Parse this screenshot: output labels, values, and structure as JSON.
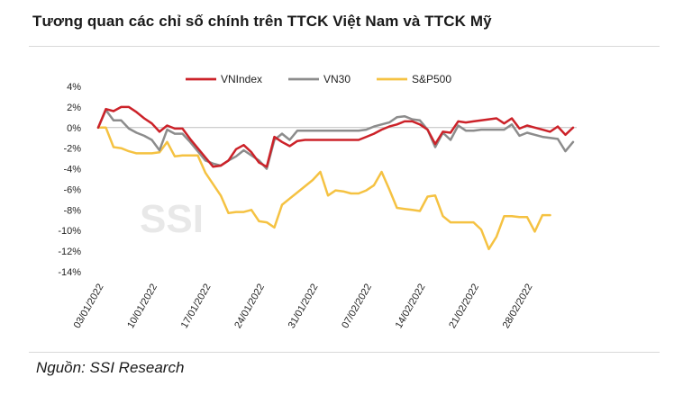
{
  "title": "Tương quan các chỉ số chính trên TTCK Việt Nam và TTCK Mỹ",
  "source": "Nguồn: SSI Research",
  "watermark": "SSI",
  "chart_data": {
    "type": "line",
    "y_unit": "%",
    "ylim": [
      -14,
      4
    ],
    "yticks": [
      4,
      2,
      0,
      -2,
      -4,
      -6,
      -8,
      -10,
      -12,
      -14
    ],
    "ytick_labels": [
      "4%",
      "2%",
      "0%",
      "-2%",
      "-4%",
      "-6%",
      "-8%",
      "-10%",
      "-12%",
      "-14%"
    ],
    "x_start": "03/01/2022",
    "x_ticks": [
      "03/01/2022",
      "10/01/2022",
      "17/01/2022",
      "24/01/2022",
      "31/01/2022",
      "07/02/2022",
      "14/02/2022",
      "21/02/2022",
      "28/02/2022"
    ],
    "x_tick_positions": [
      0,
      7,
      14,
      21,
      28,
      35,
      42,
      49,
      56
    ],
    "legend_position": "top-center",
    "grid": false,
    "series": [
      {
        "name": "VNIndex",
        "color": "#cc2229",
        "points": [
          [
            0,
            0
          ],
          [
            1,
            1.8
          ],
          [
            2,
            1.6
          ],
          [
            3,
            2.0
          ],
          [
            4,
            2.0
          ],
          [
            5,
            1.5
          ],
          [
            6,
            0.9
          ],
          [
            7,
            0.4
          ],
          [
            8,
            -0.4
          ],
          [
            9,
            0.2
          ],
          [
            10,
            -0.1
          ],
          [
            11,
            -0.1
          ],
          [
            12,
            -1.1
          ],
          [
            14,
            -2.9
          ],
          [
            15,
            -3.8
          ],
          [
            16,
            -3.7
          ],
          [
            17,
            -3.2
          ],
          [
            18,
            -2.1
          ],
          [
            19,
            -1.7
          ],
          [
            20,
            -2.4
          ],
          [
            21,
            -3.4
          ],
          [
            22,
            -3.8
          ],
          [
            23,
            -0.9
          ],
          [
            24,
            -1.4
          ],
          [
            25,
            -1.8
          ],
          [
            26,
            -1.3
          ],
          [
            27,
            -1.2
          ],
          [
            28,
            -1.2
          ],
          [
            29,
            -1.2
          ],
          [
            30,
            -1.2
          ],
          [
            31,
            -1.2
          ],
          [
            32,
            -1.2
          ],
          [
            33,
            -1.2
          ],
          [
            34,
            -1.2
          ],
          [
            35,
            -0.9
          ],
          [
            36,
            -0.6
          ],
          [
            37,
            -0.2
          ],
          [
            38,
            0.1
          ],
          [
            39,
            0.3
          ],
          [
            40,
            0.6
          ],
          [
            41,
            0.6
          ],
          [
            42,
            0.3
          ],
          [
            43,
            -0.2
          ],
          [
            44,
            -1.6
          ],
          [
            45,
            -0.4
          ],
          [
            46,
            -0.5
          ],
          [
            47,
            0.6
          ],
          [
            48,
            0.5
          ],
          [
            49,
            0.6
          ],
          [
            50,
            0.7
          ],
          [
            51,
            0.8
          ],
          [
            52,
            0.9
          ],
          [
            53,
            0.4
          ],
          [
            54,
            0.9
          ],
          [
            55,
            -0.1
          ],
          [
            56,
            0.2
          ],
          [
            57,
            0.0
          ],
          [
            58,
            -0.2
          ],
          [
            59,
            -0.4
          ],
          [
            60,
            0.1
          ],
          [
            61,
            -0.7
          ],
          [
            62,
            0.0
          ]
        ]
      },
      {
        "name": "VN30",
        "color": "#8c8c8c",
        "points": [
          [
            0,
            0
          ],
          [
            1,
            1.7
          ],
          [
            2,
            0.7
          ],
          [
            3,
            0.7
          ],
          [
            4,
            -0.1
          ],
          [
            5,
            -0.5
          ],
          [
            6,
            -0.8
          ],
          [
            7,
            -1.2
          ],
          [
            8,
            -2.2
          ],
          [
            9,
            -0.2
          ],
          [
            10,
            -0.6
          ],
          [
            11,
            -0.6
          ],
          [
            12,
            -1.4
          ],
          [
            13,
            -2.3
          ],
          [
            14,
            -3.2
          ],
          [
            15,
            -3.5
          ],
          [
            16,
            -3.7
          ],
          [
            17,
            -3.2
          ],
          [
            18,
            -2.8
          ],
          [
            19,
            -2.2
          ],
          [
            20,
            -2.7
          ],
          [
            21,
            -3.2
          ],
          [
            22,
            -4.0
          ],
          [
            23,
            -1.2
          ],
          [
            24,
            -0.6
          ],
          [
            25,
            -1.2
          ],
          [
            26,
            -0.3
          ],
          [
            27,
            -0.3
          ],
          [
            28,
            -0.3
          ],
          [
            29,
            -0.3
          ],
          [
            30,
            -0.3
          ],
          [
            31,
            -0.3
          ],
          [
            32,
            -0.3
          ],
          [
            33,
            -0.3
          ],
          [
            34,
            -0.3
          ],
          [
            35,
            -0.2
          ],
          [
            36,
            0.1
          ],
          [
            37,
            0.3
          ],
          [
            38,
            0.5
          ],
          [
            39,
            1.0
          ],
          [
            40,
            1.1
          ],
          [
            41,
            0.8
          ],
          [
            42,
            0.7
          ],
          [
            43,
            -0.2
          ],
          [
            44,
            -1.9
          ],
          [
            45,
            -0.5
          ],
          [
            46,
            -1.2
          ],
          [
            47,
            0.2
          ],
          [
            48,
            -0.3
          ],
          [
            49,
            -0.3
          ],
          [
            50,
            -0.2
          ],
          [
            51,
            -0.2
          ],
          [
            52,
            -0.2
          ],
          [
            53,
            -0.2
          ],
          [
            54,
            0.3
          ],
          [
            55,
            -0.8
          ],
          [
            56,
            -0.5
          ],
          [
            57,
            -0.7
          ],
          [
            58,
            -0.9
          ],
          [
            59,
            -1.0
          ],
          [
            60,
            -1.1
          ],
          [
            61,
            -2.3
          ],
          [
            62,
            -1.4
          ]
        ]
      },
      {
        "name": "S&P500",
        "color": "#f5c242",
        "points": [
          [
            0,
            0
          ],
          [
            1,
            0
          ],
          [
            2,
            -1.9
          ],
          [
            3,
            -2.0
          ],
          [
            4,
            -2.3
          ],
          [
            5,
            -2.5
          ],
          [
            6,
            -2.5
          ],
          [
            7,
            -2.5
          ],
          [
            8,
            -2.4
          ],
          [
            9,
            -1.4
          ],
          [
            10,
            -2.8
          ],
          [
            11,
            -2.7
          ],
          [
            12,
            -2.7
          ],
          [
            13,
            -2.7
          ],
          [
            14,
            -4.4
          ],
          [
            15,
            -5.5
          ],
          [
            16,
            -6.6
          ],
          [
            17,
            -8.3
          ],
          [
            18,
            -8.2
          ],
          [
            19,
            -8.2
          ],
          [
            20,
            -8.0
          ],
          [
            21,
            -9.1
          ],
          [
            22,
            -9.2
          ],
          [
            23,
            -9.7
          ],
          [
            24,
            -7.5
          ],
          [
            25,
            -6.9
          ],
          [
            26,
            -6.3
          ],
          [
            27,
            -5.7
          ],
          [
            28,
            -5.1
          ],
          [
            29,
            -4.3
          ],
          [
            30,
            -6.6
          ],
          [
            31,
            -6.1
          ],
          [
            32,
            -6.2
          ],
          [
            33,
            -6.4
          ],
          [
            34,
            -6.4
          ],
          [
            35,
            -6.1
          ],
          [
            36,
            -5.6
          ],
          [
            37,
            -4.3
          ],
          [
            38,
            -6.0
          ],
          [
            39,
            -7.8
          ],
          [
            40,
            -7.9
          ],
          [
            41,
            -8.0
          ],
          [
            42,
            -8.1
          ],
          [
            43,
            -6.7
          ],
          [
            44,
            -6.6
          ],
          [
            45,
            -8.6
          ],
          [
            46,
            -9.2
          ],
          [
            47,
            -9.2
          ],
          [
            48,
            -9.2
          ],
          [
            49,
            -9.2
          ],
          [
            50,
            -9.9
          ],
          [
            51,
            -11.8
          ],
          [
            52,
            -10.6
          ],
          [
            53,
            -8.6
          ],
          [
            54,
            -8.6
          ],
          [
            55,
            -8.7
          ],
          [
            56,
            -8.7
          ],
          [
            57,
            -10.1
          ],
          [
            58,
            -8.5
          ],
          [
            59,
            -8.5
          ]
        ]
      }
    ]
  }
}
